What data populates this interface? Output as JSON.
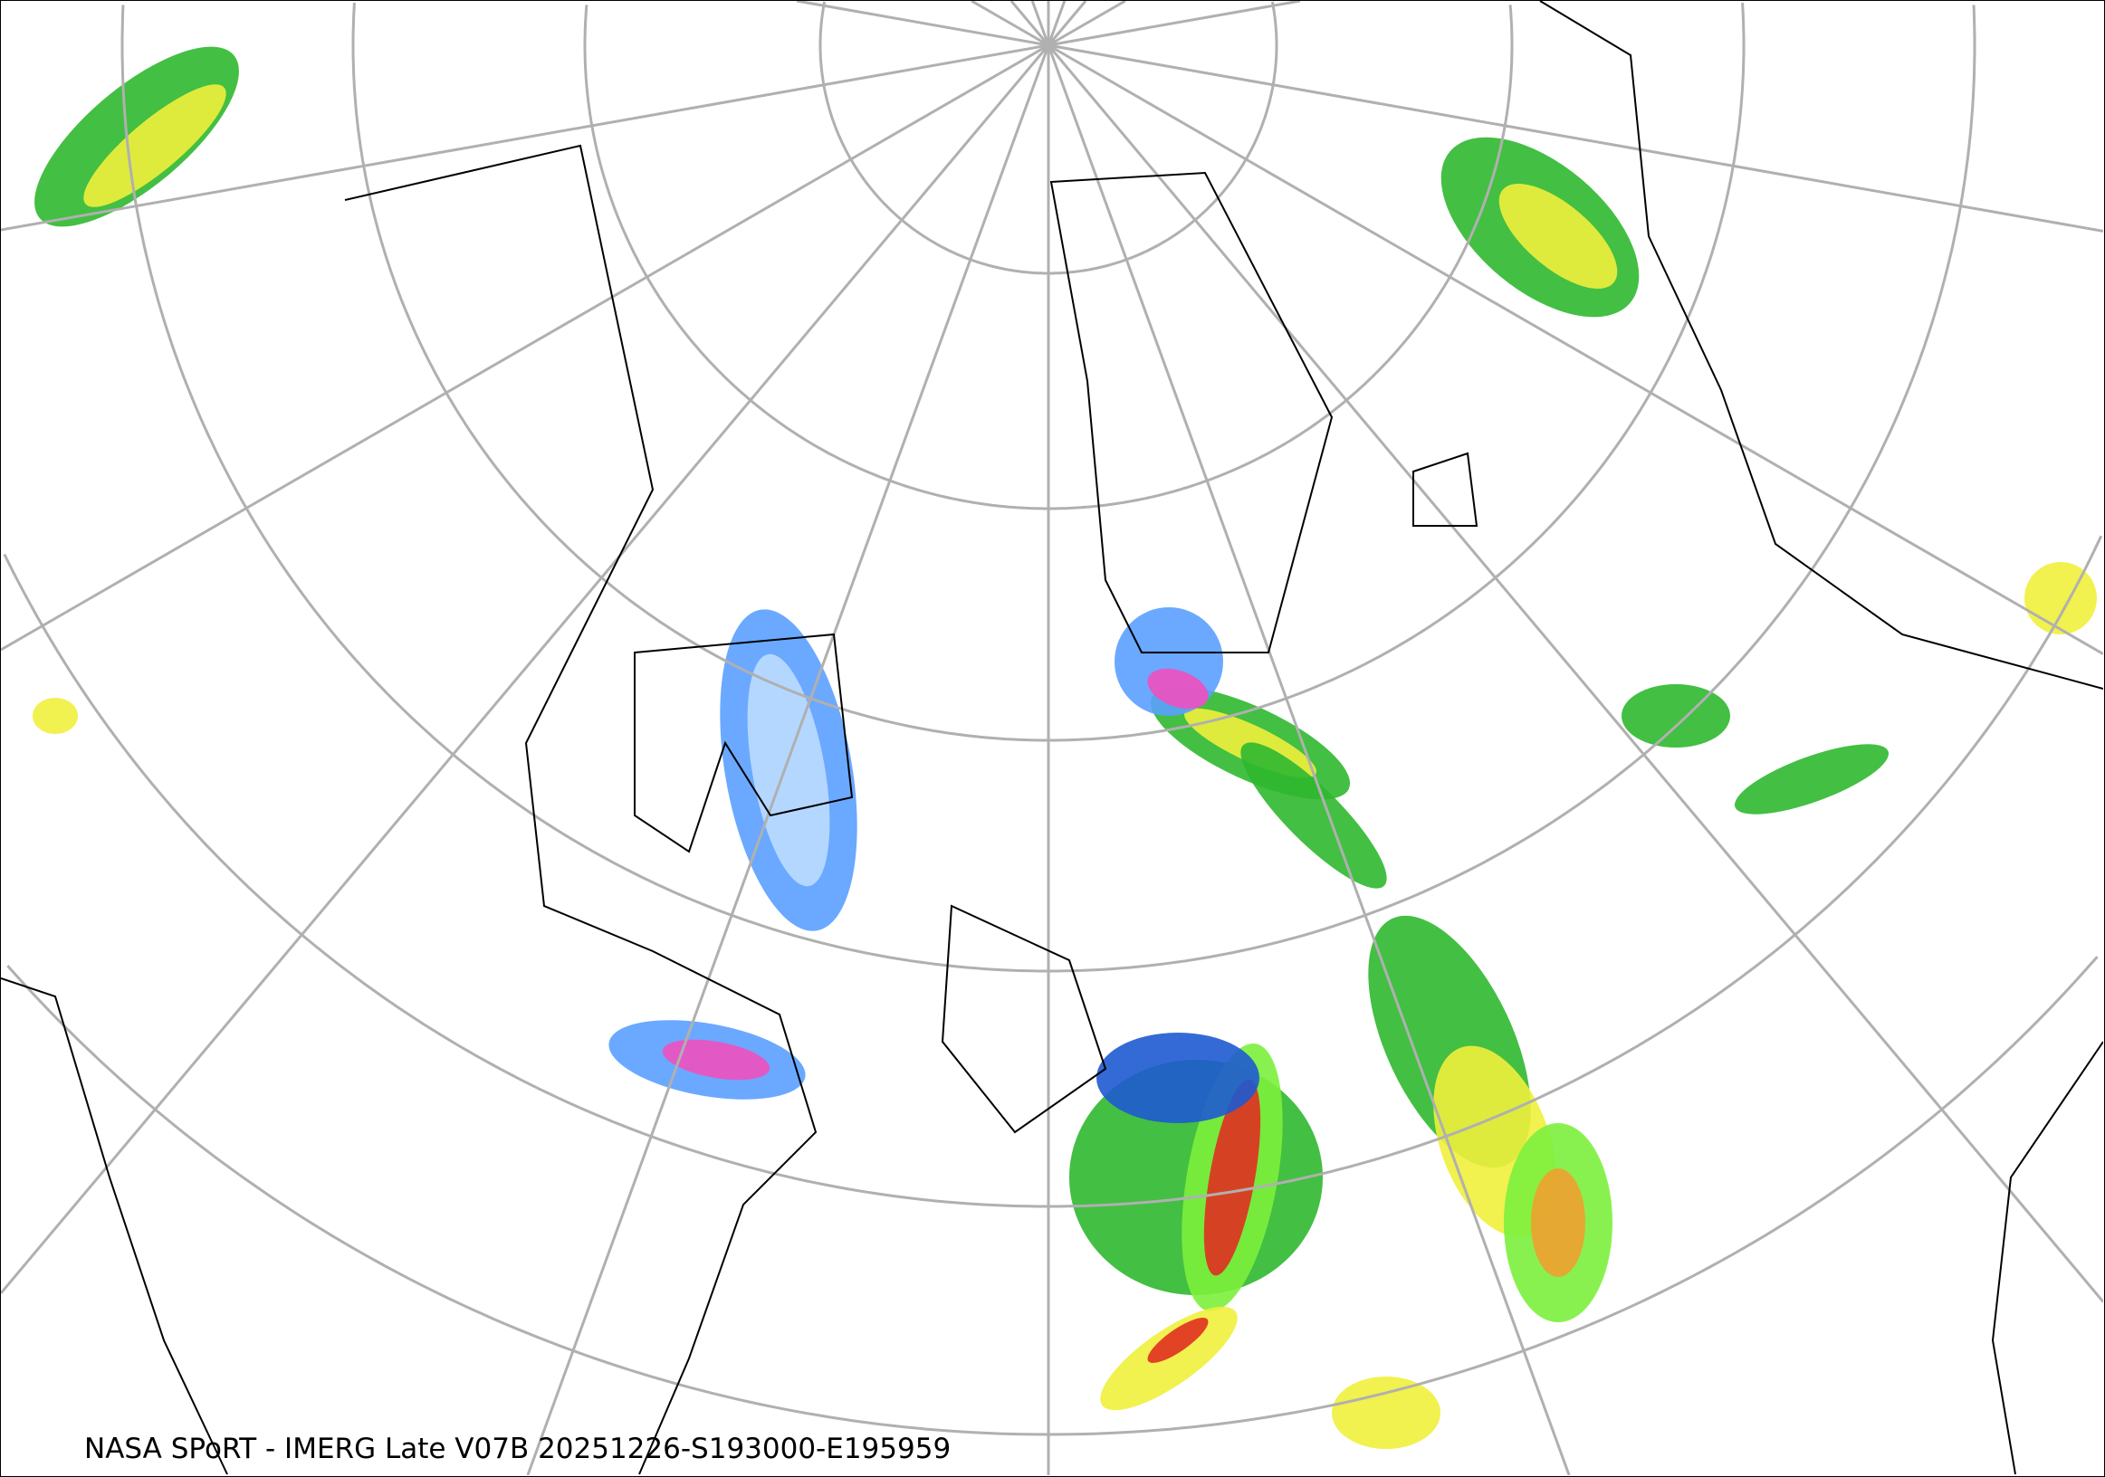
{
  "caption": "NASA SPoRT - IMERG Late V07B 20251226-S193000-E195959",
  "map": {
    "projection": "polar stereographic (north pole)",
    "graticule_color": "#b0b0b0",
    "coastline_color": "#000000",
    "precip_colors": [
      "#1a6e1a",
      "#2fb82f",
      "#7cf03c",
      "#f0f03c",
      "#f0a030",
      "#e03020",
      "#f050c0",
      "#bcdcff",
      "#5aa0ff",
      "#1e5ad0"
    ]
  }
}
